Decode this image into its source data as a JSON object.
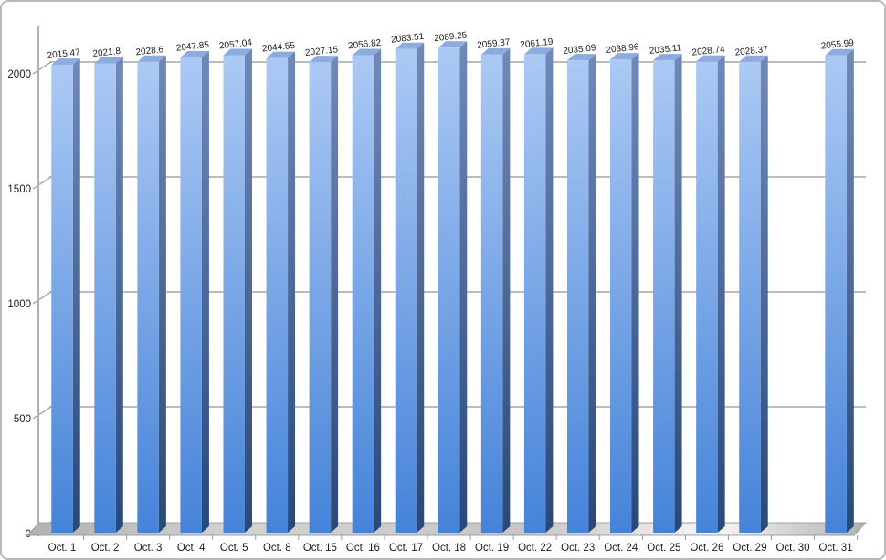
{
  "chart_data": {
    "type": "bar",
    "style": "3d-perspective",
    "title": "",
    "xlabel": "",
    "ylabel": "",
    "legend": false,
    "grid": true,
    "categories": [
      "Oct. 1",
      "Oct. 2",
      "Oct. 3",
      "Oct. 4",
      "Oct. 5",
      "Oct. 8",
      "Oct. 15",
      "Oct. 16",
      "Oct. 17",
      "Oct. 18",
      "Oct. 19",
      "Oct. 22",
      "Oct. 23",
      "Oct. 24",
      "Oct. 25",
      "Oct. 26",
      "Oct. 29",
      "Oct. 30",
      "Oct. 31"
    ],
    "values": [
      2015.47,
      2021.8,
      2028.6,
      2047.85,
      2057.04,
      2044.55,
      2027.15,
      2056.82,
      2083.51,
      2089.25,
      2059.37,
      2061.19,
      2035.09,
      2038.96,
      2035.11,
      2028.74,
      2028.37,
      null,
      2055.99
    ],
    "value_labels": [
      "2015.47",
      "2021.8",
      "2028.6",
      "2047.85",
      "2057.04",
      "2044.55",
      "2027.15",
      "2056.82",
      "2083.51",
      "2089.25",
      "2059.37",
      "2061.19",
      "2035.09",
      "2038.96",
      "2035.11",
      "2028.74",
      "2028.37",
      "",
      "2055.99"
    ],
    "y_ticks": [
      0,
      500,
      1000,
      1500,
      2000
    ],
    "ylim": [
      0,
      2100
    ],
    "colors": {
      "bar_front_top": "#acc9f4",
      "bar_front_bottom": "#4583d9",
      "bar_side_top": "#7089b8",
      "bar_side_bottom": "#284878",
      "bar_top_face": "#8cace0",
      "gridline": "#a6a6a6",
      "axis": "#b3b3b3",
      "tick": "#9a9a9a",
      "floor_edge": "#9f9f9f",
      "floor_a": "#b0b0b0",
      "floor_b": "#d2d2d2",
      "floor_shine": "#f7f7f7",
      "text": "#1c1c1c"
    }
  }
}
